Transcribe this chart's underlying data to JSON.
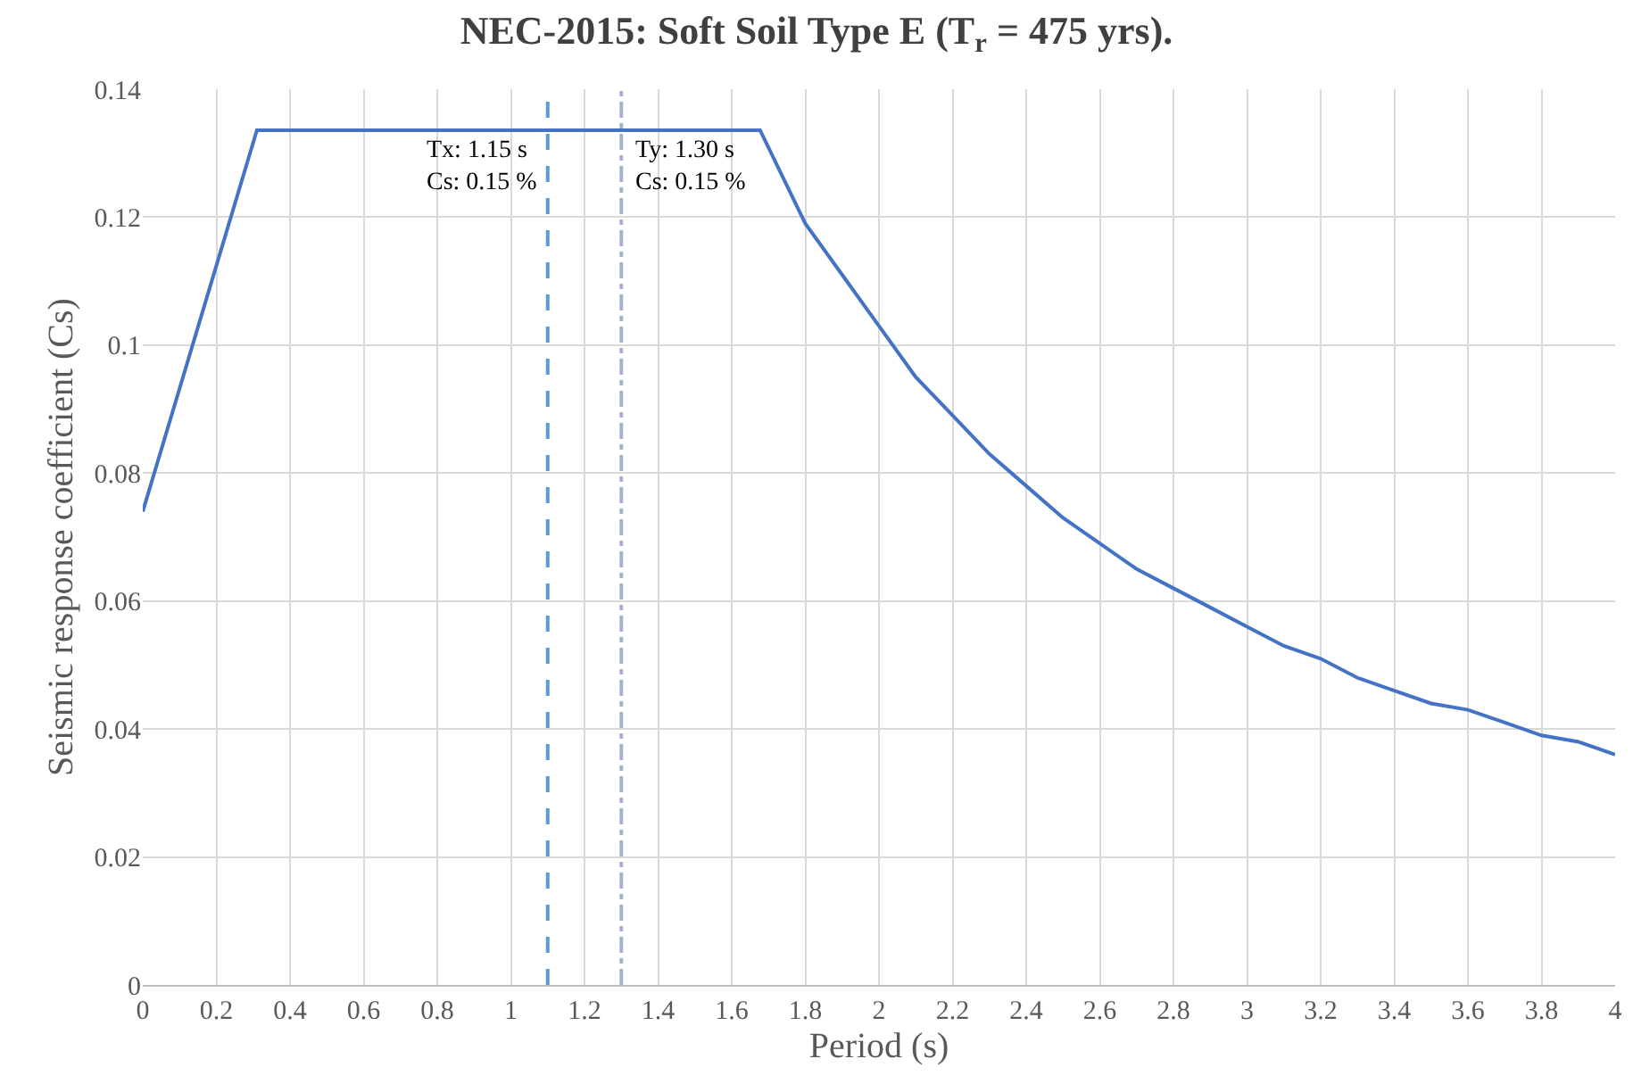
{
  "chart_data": {
    "type": "line",
    "title": "NEC-2015: Soft Soil Type E (T$_{r}$ = 475 yrs).",
    "xlabel": "Period (s)",
    "ylabel": "Seismic response coefficient (Cs)",
    "series": [
      {
        "color": "#4472c4",
        "x": [
          0,
          0.31,
          1.677,
          1.8,
          1.9,
          2.0,
          2.1,
          2.2,
          2.3,
          2.4,
          2.5,
          2.6,
          2.7,
          2.8,
          2.9,
          3.0,
          3.1,
          3.2,
          3.3,
          3.4,
          3.5,
          3.6,
          3.7,
          3.8,
          3.9,
          4.0
        ],
        "values": [
          0.074,
          0.1336,
          0.1336,
          0.119,
          0.111,
          0.103,
          0.095,
          0.089,
          0.083,
          0.078,
          0.073,
          0.069,
          0.065,
          0.062,
          0.059,
          0.056,
          0.053,
          0.051,
          0.048,
          0.046,
          0.044,
          0.043,
          0.041,
          0.039,
          0.038,
          0.036
        ]
      }
    ],
    "ref_lines": [
      {
        "axis": "x",
        "value": 1.1,
        "color": "#5b9bd5",
        "line_style": "dashed"
      },
      {
        "axis": "x",
        "value": 1.3,
        "color": "#a5b4cc",
        "line_style": "dashdot"
      }
    ],
    "annotations": [
      "Tx: 1.15 s\nCs: 0.15 %",
      "Ty: 1.30 s\nCs: 0.15 %"
    ],
    "xlim": [
      0,
      4
    ],
    "xticks": [
      0,
      0.2,
      0.4,
      0.6,
      0.8,
      1,
      1.2,
      1.4,
      1.6,
      1.8,
      2,
      2.2,
      2.4,
      2.6,
      2.8,
      3,
      3.2,
      3.4,
      3.6,
      3.8,
      4
    ],
    "ylim": [
      0,
      0.14
    ],
    "yticks": [
      0,
      0.02,
      0.04,
      0.06,
      0.08,
      0.1,
      0.12,
      0.14
    ],
    "grid": true,
    "marker": "none",
    "line_style": "solid"
  }
}
